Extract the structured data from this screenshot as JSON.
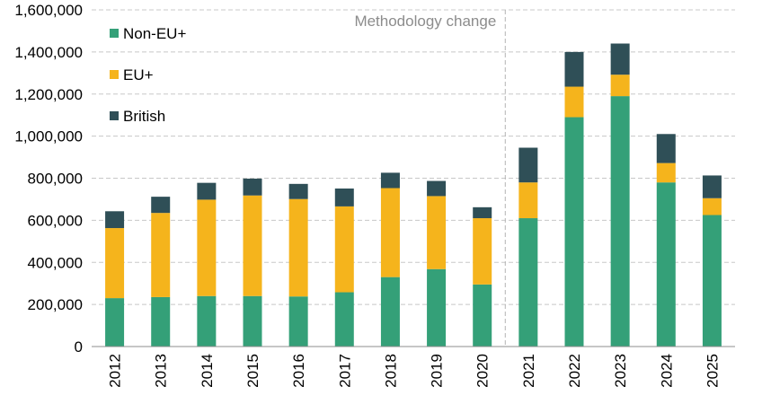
{
  "chart_data": {
    "type": "bar",
    "stacked": true,
    "categories": [
      "2012",
      "2013",
      "2014",
      "2015",
      "2016",
      "2017",
      "2018",
      "2019",
      "2020",
      "2021",
      "2022",
      "2023",
      "2024",
      "2025"
    ],
    "series": [
      {
        "name": "Non-EU+",
        "color": "#34a078",
        "values": [
          230000,
          235000,
          240000,
          240000,
          238000,
          258000,
          330000,
          368000,
          295000,
          610000,
          1090000,
          1190000,
          780000,
          625000
        ]
      },
      {
        "name": "EU+",
        "color": "#f5b41c",
        "values": [
          333000,
          400000,
          458000,
          478000,
          463000,
          408000,
          423000,
          347000,
          315000,
          170000,
          145000,
          102000,
          92000,
          80000
        ]
      },
      {
        "name": "British",
        "color": "#2f4f57",
        "values": [
          80000,
          77000,
          80000,
          80000,
          72000,
          85000,
          73000,
          72000,
          52000,
          165000,
          165000,
          148000,
          138000,
          108000
        ]
      }
    ],
    "y_tick_labels": [
      "0",
      "200,000",
      "400,000",
      "600,000",
      "800,000",
      "1,000,000",
      "1,200,000",
      "1,400,000",
      "1,600,000"
    ],
    "ylim": [
      0,
      1600000
    ],
    "grid": "horizontal dashed",
    "legend": "top-left",
    "annotation": {
      "text": "Methodology change",
      "between": [
        "2020",
        "2021"
      ]
    },
    "title": "",
    "xlabel": "",
    "ylabel": ""
  }
}
